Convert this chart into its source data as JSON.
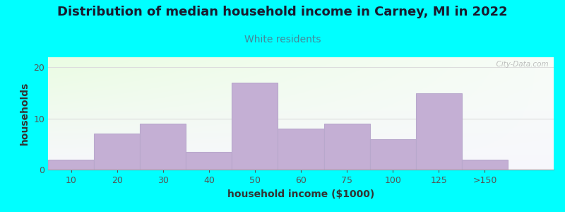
{
  "title": "Distribution of median household income in Carney, MI in 2022",
  "subtitle": "White residents",
  "xlabel": "household income ($1000)",
  "ylabel": "households",
  "background_outer": "#00FFFF",
  "bar_color": "#c4afd4",
  "bar_edge_color": "#b8a8cc",
  "title_fontsize": 13,
  "subtitle_fontsize": 10,
  "subtitle_color": "#448899",
  "xlabel_fontsize": 10,
  "ylabel_fontsize": 10,
  "categories": [
    "10",
    "20",
    "30",
    "40",
    "50",
    "60",
    "75",
    "100",
    "125",
    ">150"
  ],
  "values": [
    2,
    7,
    9,
    3.5,
    17,
    8,
    9,
    6,
    15,
    2
  ],
  "ylim": [
    0,
    22
  ],
  "yticks": [
    0,
    10,
    20
  ],
  "watermark": "  City-Data.com"
}
